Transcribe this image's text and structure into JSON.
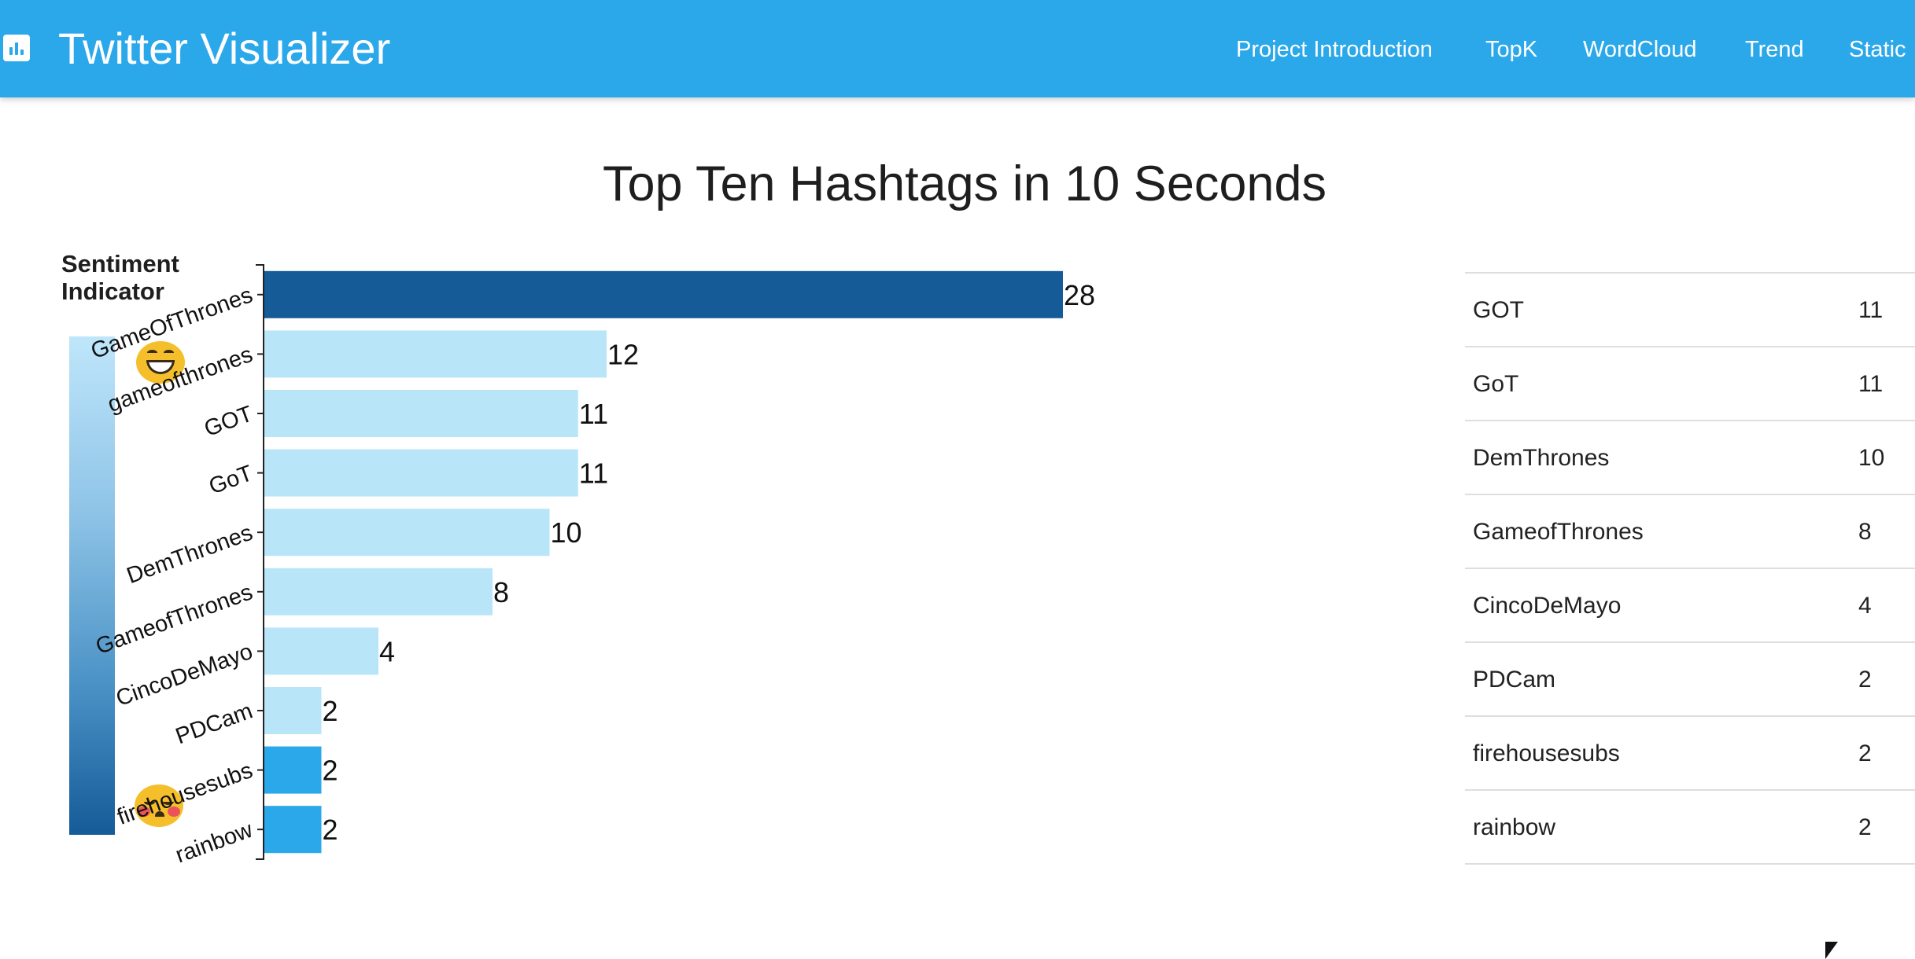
{
  "app": {
    "title": "Twitter Visualizer",
    "icon": "bar-chart-icon"
  },
  "nav": {
    "items": [
      {
        "label": "Project Introduction"
      },
      {
        "label": "TopK"
      },
      {
        "label": "WordCloud"
      },
      {
        "label": "Trend"
      },
      {
        "label": "Static"
      }
    ]
  },
  "page": {
    "title": "Top Ten Hashtags in 10 Seconds"
  },
  "sentiment": {
    "title": "Sentiment Indicator",
    "positive_icon": "happy-face-icon",
    "negative_icon": "sad-face-icon",
    "colors": [
      "#bfe6fb",
      "#155b98"
    ]
  },
  "chart_data": {
    "type": "bar",
    "orientation": "horizontal",
    "title": "Top Ten Hashtags in 10 Seconds",
    "categories": [
      "GameOfThrones",
      "gameofthrones",
      "GOT",
      "GoT",
      "DemThrones",
      "GameofThrones",
      "CincoDeMayo",
      "PDCam",
      "firehousesubs",
      "rainbow"
    ],
    "values": [
      28,
      12,
      11,
      11,
      10,
      8,
      4,
      2,
      2,
      2
    ],
    "bar_colors": [
      "#155b98",
      "#b9e5f9",
      "#b9e5f9",
      "#b9e5f9",
      "#b9e5f9",
      "#b9e5f9",
      "#b9e5f9",
      "#b9e5f9",
      "#2ba8ea",
      "#2ba8ea"
    ],
    "xlim": [
      0,
      28
    ],
    "xlabel": "",
    "ylabel": "",
    "grid": false
  },
  "table": {
    "rows": [
      {
        "name": "GOT",
        "count": "11"
      },
      {
        "name": "GoT",
        "count": "11"
      },
      {
        "name": "DemThrones",
        "count": "10"
      },
      {
        "name": "GameofThrones",
        "count": "8"
      },
      {
        "name": "CincoDeMayo",
        "count": "4"
      },
      {
        "name": "PDCam",
        "count": "2"
      },
      {
        "name": "firehousesubs",
        "count": "2"
      },
      {
        "name": "rainbow",
        "count": "2"
      }
    ]
  }
}
